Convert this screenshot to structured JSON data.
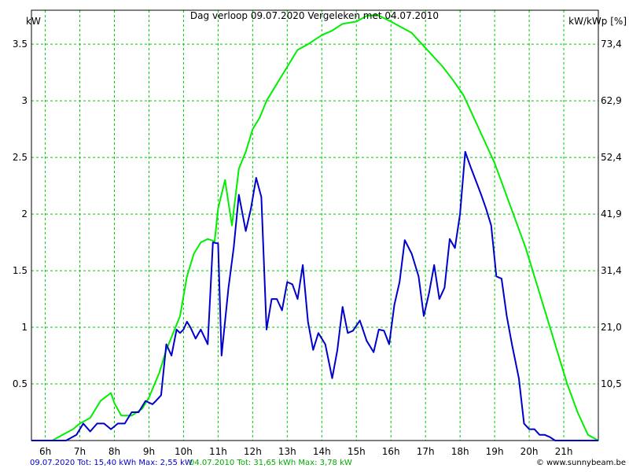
{
  "chart_data": {
    "type": "line",
    "title": "Dag  verloop 09.07.2020    Vergeleken met 04.07.2010",
    "ylabel_left": "kW",
    "ylabel_right": "kW/kWp [%]",
    "x_ticks": [
      "6h",
      "7h",
      "8h",
      "9h",
      "10h",
      "11h",
      "12h",
      "13h",
      "14h",
      "15h",
      "16h",
      "17h",
      "18h",
      "19h",
      "20h",
      "21h"
    ],
    "xlim": [
      5.6,
      22.0
    ],
    "ylim": [
      0,
      3.8
    ],
    "y_ticks": [
      0.5,
      1,
      1.5,
      2,
      2.5,
      3,
      3.5
    ],
    "y_tick_labels": [
      "0.5",
      "1",
      "1.5",
      "2",
      "2.5",
      "3",
      "3.5"
    ],
    "y2_tick_labels": [
      "10,5",
      "21,0",
      "31,4",
      "41,9",
      "52,4",
      "62,9",
      "73,4"
    ],
    "grid": true,
    "series": [
      {
        "name": "04.07.2010",
        "color": "#00ee00",
        "x": [
          5.6,
          6.2,
          6.5,
          6.8,
          7.0,
          7.3,
          7.6,
          7.9,
          8.0,
          8.2,
          8.5,
          8.8,
          9.0,
          9.3,
          9.5,
          9.7,
          9.9,
          10.1,
          10.3,
          10.5,
          10.7,
          10.9,
          11.0,
          11.2,
          11.4,
          11.6,
          11.8,
          12.0,
          12.2,
          12.4,
          12.6,
          12.8,
          13.0,
          13.3,
          13.6,
          14.0,
          14.3,
          14.6,
          15.0,
          15.3,
          15.6,
          16.0,
          16.3,
          16.6,
          16.9,
          17.2,
          17.5,
          17.8,
          18.1,
          18.4,
          18.7,
          19.0,
          19.3,
          19.6,
          19.9,
          20.2,
          20.5,
          20.8,
          21.1,
          21.4,
          21.7,
          22.0
        ],
        "y": [
          0,
          0,
          0.05,
          0.1,
          0.15,
          0.2,
          0.35,
          0.42,
          0.33,
          0.22,
          0.22,
          0.28,
          0.38,
          0.6,
          0.8,
          0.95,
          1.1,
          1.45,
          1.65,
          1.75,
          1.78,
          1.76,
          2.05,
          2.3,
          1.9,
          2.4,
          2.55,
          2.75,
          2.85,
          3.0,
          3.1,
          3.2,
          3.3,
          3.45,
          3.5,
          3.58,
          3.62,
          3.68,
          3.7,
          3.75,
          3.76,
          3.7,
          3.65,
          3.6,
          3.5,
          3.4,
          3.3,
          3.18,
          3.05,
          2.85,
          2.65,
          2.45,
          2.2,
          1.95,
          1.7,
          1.4,
          1.1,
          0.8,
          0.5,
          0.25,
          0.05,
          0
        ]
      },
      {
        "name": "09.07.2020",
        "color": "#0000cc",
        "x": [
          5.6,
          6.6,
          6.9,
          7.1,
          7.3,
          7.5,
          7.7,
          7.9,
          8.1,
          8.3,
          8.5,
          8.7,
          8.9,
          9.1,
          9.2,
          9.35,
          9.5,
          9.65,
          9.8,
          9.9,
          10.0,
          10.1,
          10.2,
          10.35,
          10.5,
          10.7,
          10.85,
          11.0,
          11.1,
          11.3,
          11.45,
          11.6,
          11.8,
          11.95,
          12.1,
          12.25,
          12.4,
          12.55,
          12.7,
          12.85,
          13.0,
          13.15,
          13.3,
          13.45,
          13.6,
          13.75,
          13.9,
          14.1,
          14.3,
          14.45,
          14.6,
          14.75,
          14.9,
          15.1,
          15.3,
          15.5,
          15.65,
          15.8,
          15.95,
          16.1,
          16.25,
          16.4,
          16.6,
          16.8,
          16.95,
          17.1,
          17.25,
          17.4,
          17.55,
          17.7,
          17.85,
          18.0,
          18.15,
          18.3,
          18.45,
          18.6,
          18.75,
          18.9,
          19.05,
          19.2,
          19.35,
          19.5,
          19.7,
          19.85,
          20.0,
          20.15,
          20.3,
          20.45,
          20.6,
          20.75,
          20.9,
          21.1,
          21.3,
          21.5,
          21.7,
          22.0
        ],
        "y": [
          0,
          0,
          0.05,
          0.15,
          0.08,
          0.15,
          0.15,
          0.1,
          0.15,
          0.15,
          0.25,
          0.25,
          0.35,
          0.32,
          0.35,
          0.4,
          0.85,
          0.75,
          0.98,
          0.95,
          0.98,
          1.05,
          1.0,
          0.9,
          0.98,
          0.85,
          1.75,
          1.74,
          0.75,
          1.35,
          1.7,
          2.17,
          1.85,
          2.05,
          2.32,
          2.15,
          0.98,
          1.25,
          1.25,
          1.15,
          1.4,
          1.38,
          1.25,
          1.55,
          1.05,
          0.8,
          0.95,
          0.85,
          0.55,
          0.8,
          1.18,
          0.95,
          0.97,
          1.06,
          0.88,
          0.78,
          0.98,
          0.97,
          0.85,
          1.2,
          1.4,
          1.77,
          1.65,
          1.45,
          1.1,
          1.3,
          1.55,
          1.25,
          1.35,
          1.78,
          1.7,
          2.0,
          2.55,
          2.42,
          2.3,
          2.18,
          2.05,
          1.9,
          1.45,
          1.43,
          1.1,
          0.85,
          0.55,
          0.15,
          0.1,
          0.1,
          0.05,
          0.05,
          0.03,
          0.0,
          0.0,
          0.0,
          0.0,
          0.0,
          0.0,
          0.0
        ]
      }
    ]
  },
  "footer": {
    "blue_text": "09.07.2020 Tot: 15,40 kWh Max: 2,55 kW",
    "green_text": "04.07.2010 Tot: 31,65 kWh Max: 3,78 kW",
    "credit": "© www.sunnybeam.be"
  }
}
